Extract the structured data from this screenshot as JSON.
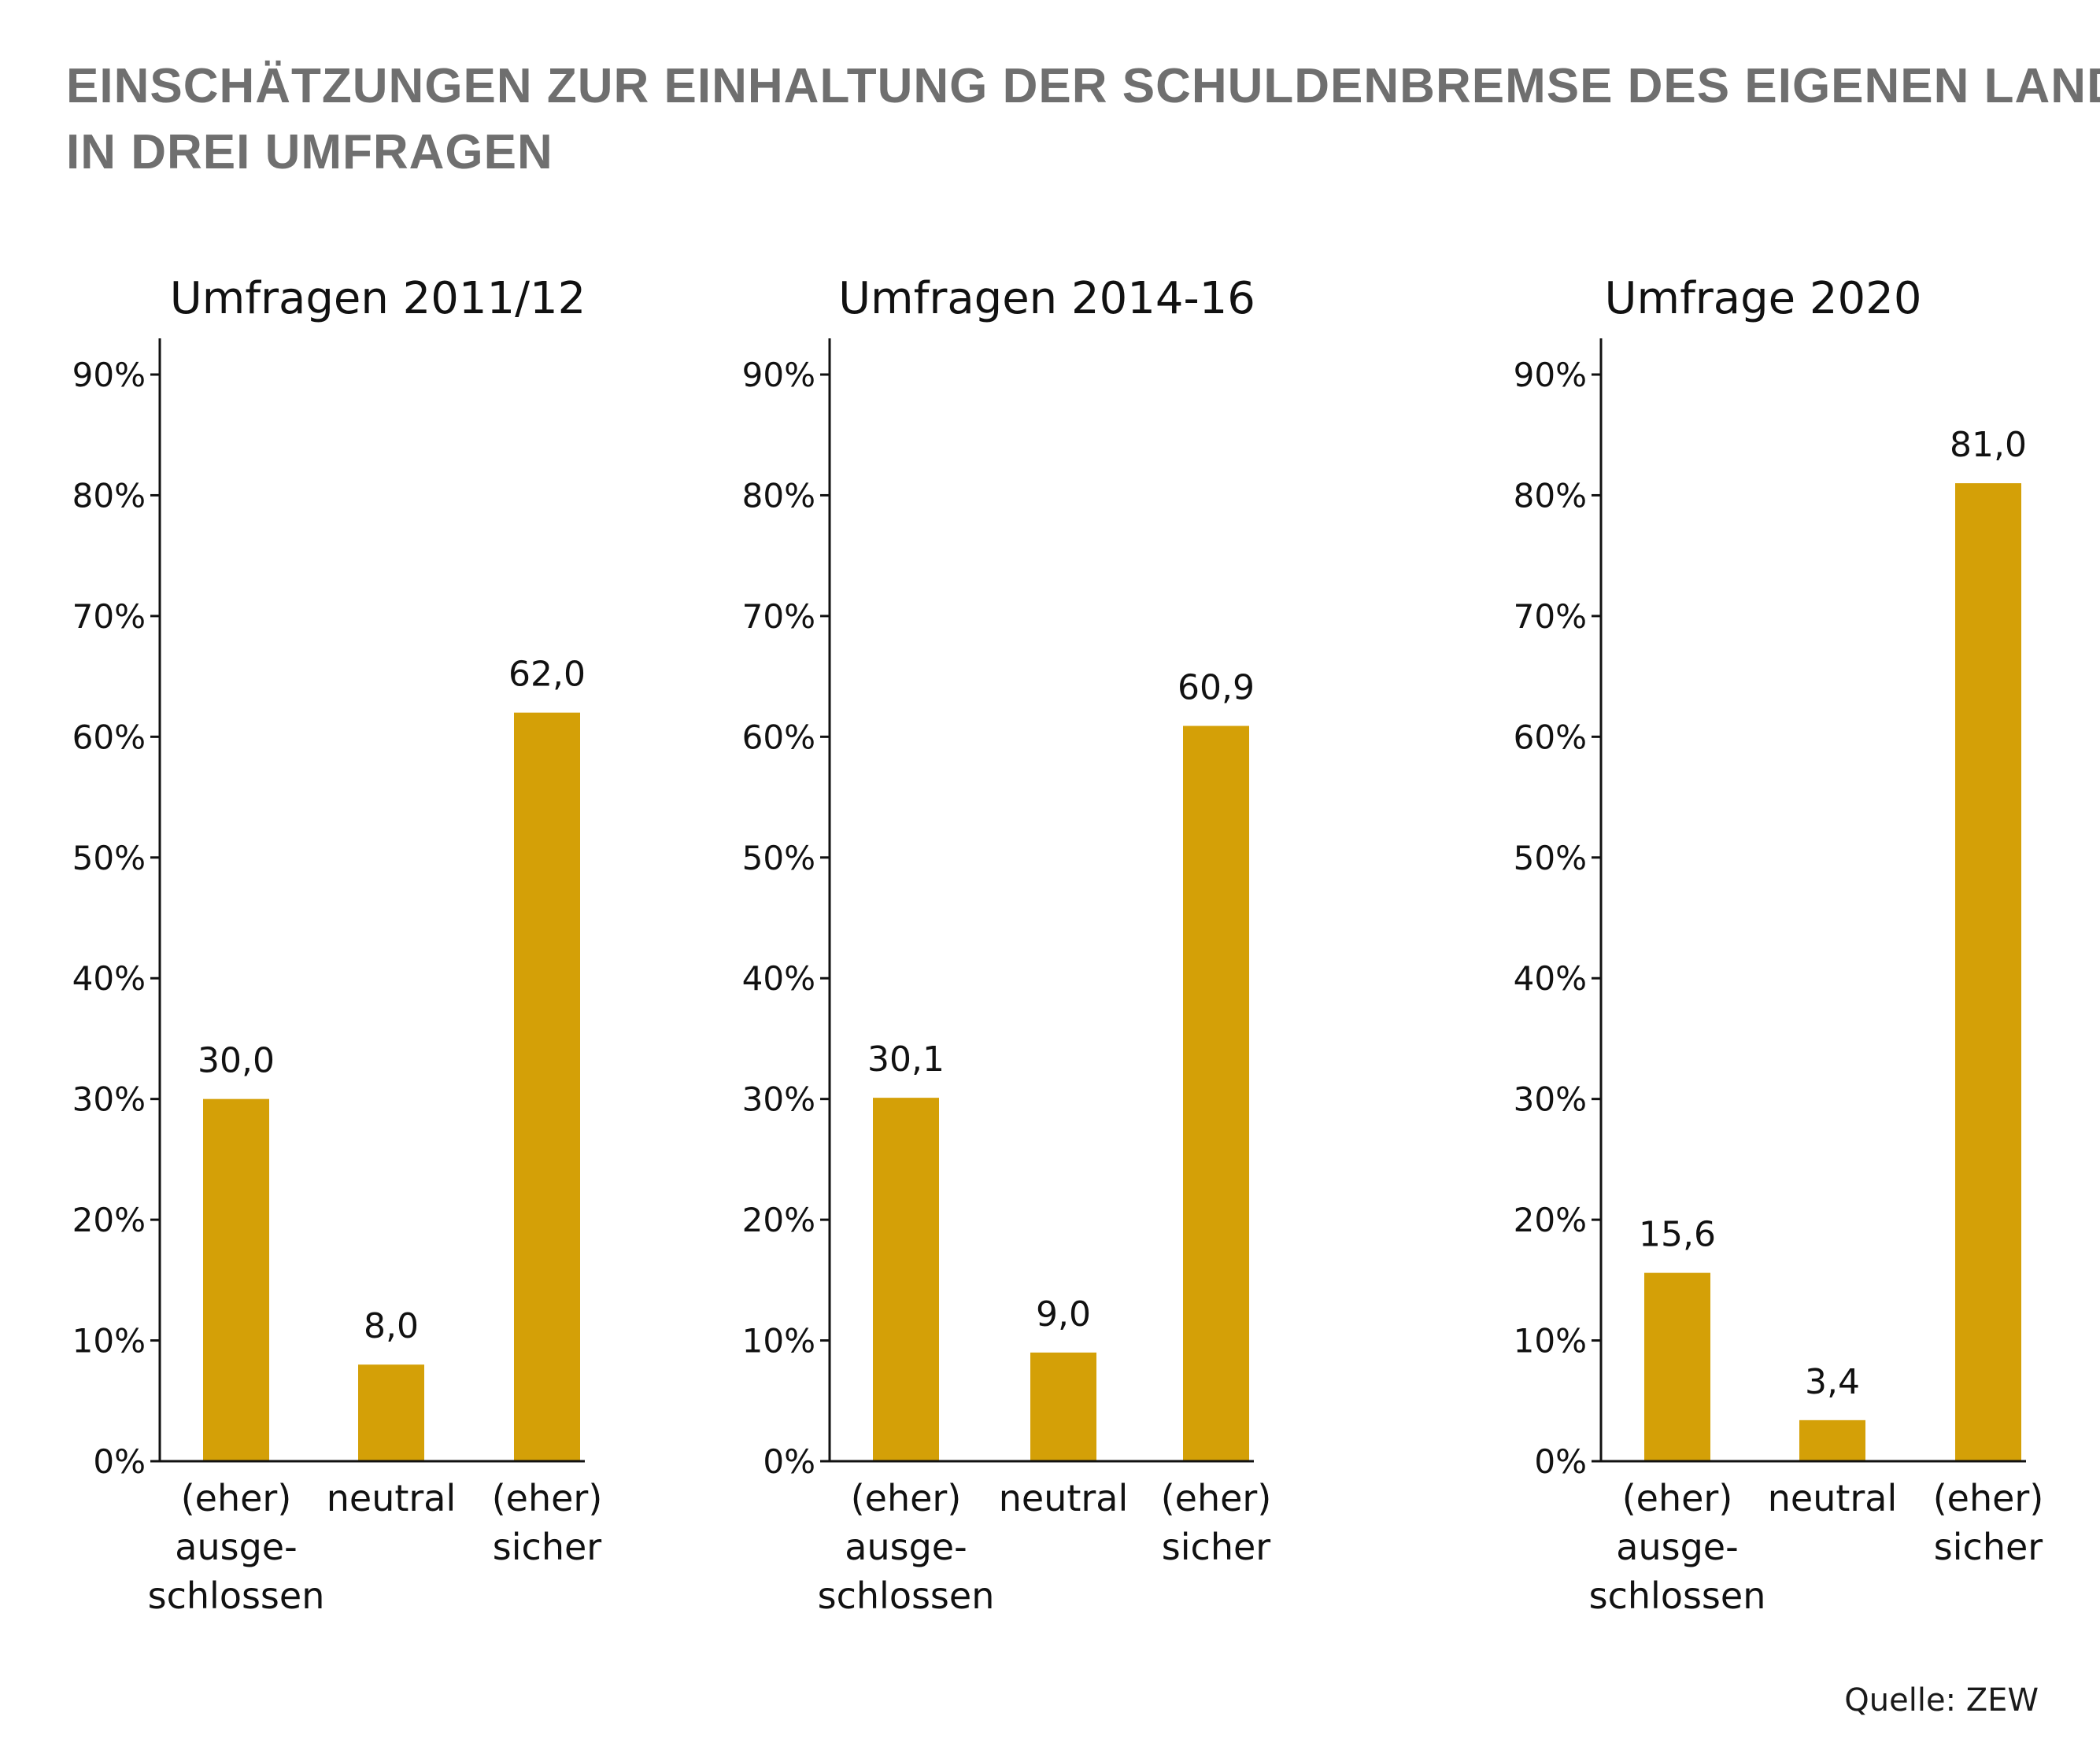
{
  "title_lines": [
    "EINSCHÄTZUNGEN ZUR EINHALTUNG DER SCHULDENBREMSE DES EIGENEN LANDES",
    "IN DREI UMFRAGEN"
  ],
  "source": "Quelle: ZEW",
  "colors": {
    "bar": "#D4A007",
    "title": "#6f6f6f",
    "axis": "#111111"
  },
  "chart_data": [
    {
      "type": "bar",
      "title": "Umfragen 2011/12",
      "categories": [
        [
          "(eher)",
          "ausge-",
          "schlossen"
        ],
        [
          "neutral"
        ],
        [
          "(eher)",
          "sicher"
        ]
      ],
      "values": [
        30.0,
        8.0,
        62.0
      ],
      "value_labels": [
        "30,0",
        "8,0",
        "62,0"
      ],
      "ylim": [
        0,
        90
      ],
      "yticks": [
        "0%",
        "10%",
        "20%",
        "30%",
        "40%",
        "50%",
        "60%",
        "70%",
        "80%",
        "90%"
      ],
      "grid": false
    },
    {
      "type": "bar",
      "title": "Umfragen 2014-16",
      "categories": [
        [
          "(eher)",
          "ausge-",
          "schlossen"
        ],
        [
          "neutral"
        ],
        [
          "(eher)",
          "sicher"
        ]
      ],
      "values": [
        30.1,
        9.0,
        60.9
      ],
      "value_labels": [
        "30,1",
        "9,0",
        "60,9"
      ],
      "ylim": [
        0,
        90
      ],
      "yticks": [
        "0%",
        "10%",
        "20%",
        "30%",
        "40%",
        "50%",
        "60%",
        "70%",
        "80%",
        "90%"
      ],
      "grid": false
    },
    {
      "type": "bar",
      "title": "Umfrage 2020",
      "categories": [
        [
          "(eher)",
          "ausge-",
          "schlossen"
        ],
        [
          "neutral"
        ],
        [
          "(eher)",
          "sicher"
        ]
      ],
      "values": [
        15.6,
        3.4,
        81.0
      ],
      "value_labels": [
        "15,6",
        "3,4",
        "81,0"
      ],
      "ylim": [
        0,
        90
      ],
      "yticks": [
        "0%",
        "10%",
        "20%",
        "30%",
        "40%",
        "50%",
        "60%",
        "70%",
        "80%",
        "90%"
      ],
      "grid": false
    }
  ]
}
